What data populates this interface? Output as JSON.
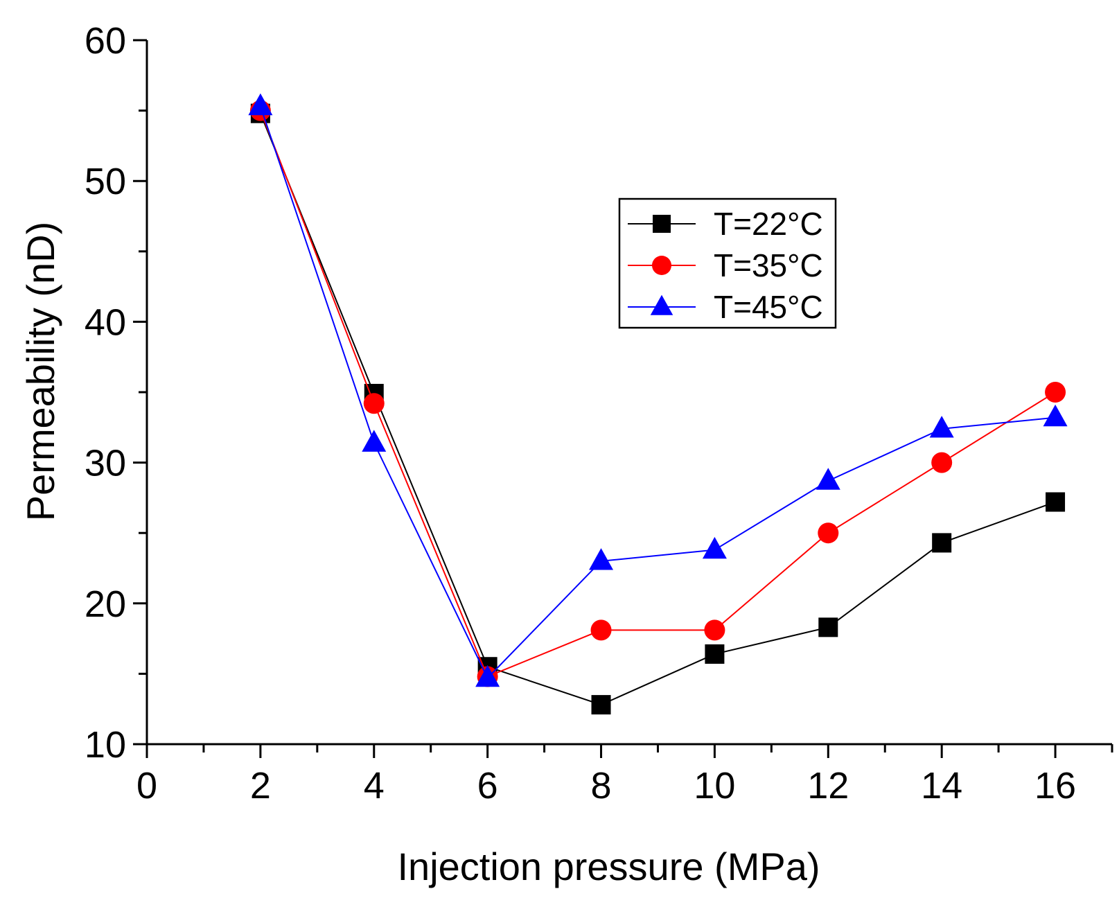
{
  "chart_data": {
    "type": "line",
    "title": "",
    "xlabel": "Injection pressure (MPa)",
    "ylabel": "Permeability (nD)",
    "xlim": [
      0,
      17
    ],
    "ylim": [
      10,
      60
    ],
    "x_ticks": [
      0,
      2,
      4,
      6,
      8,
      10,
      12,
      14,
      16
    ],
    "x_tick_labels": [
      "0",
      "2",
      "4",
      "6",
      "8",
      "10",
      "12",
      "14",
      "16"
    ],
    "y_ticks": [
      10,
      20,
      30,
      40,
      50,
      60
    ],
    "y_tick_labels": [
      "10",
      "20",
      "30",
      "40",
      "50",
      "60"
    ],
    "grid": false,
    "legend_position": "upper-center-right",
    "x": [
      2,
      4,
      6,
      8,
      10,
      12,
      14,
      16
    ],
    "series": [
      {
        "name": "T=22°C",
        "color": "#000000",
        "marker": "square",
        "values": [
          54.8,
          34.9,
          15.5,
          12.8,
          16.4,
          18.3,
          24.3,
          27.2
        ]
      },
      {
        "name": "T=35°C",
        "color": "#ff0000",
        "marker": "circle",
        "values": [
          55.0,
          34.2,
          14.8,
          18.1,
          18.1,
          25.0,
          30.0,
          35.0
        ]
      },
      {
        "name": "T=45°C",
        "color": "#0000ff",
        "marker": "triangle",
        "values": [
          55.3,
          31.4,
          14.7,
          23.0,
          23.8,
          28.7,
          32.4,
          33.2
        ]
      }
    ]
  }
}
